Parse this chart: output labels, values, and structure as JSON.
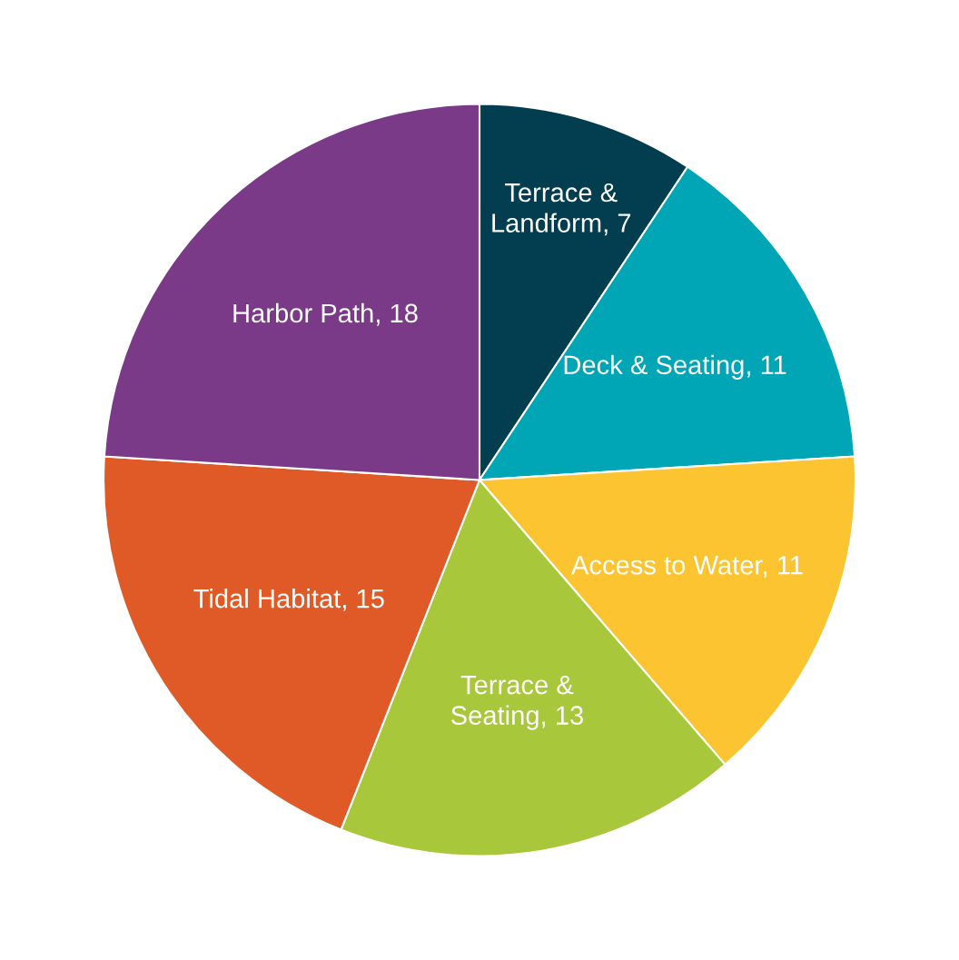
{
  "chart_data": {
    "type": "pie",
    "categories": [
      "Terrace &\nLandform, 7",
      "Deck & Seating, 11",
      "Access to Water, 11",
      "Terrace &\nSeating, 13",
      "Tidal Habitat, 15",
      "Harbor Path, 18"
    ],
    "values": [
      7,
      11,
      11,
      13,
      15,
      18
    ],
    "colors": [
      "#023d50",
      "#00a6b5",
      "#fdc431",
      "#a8c73a",
      "#e05a27",
      "#7a3a87"
    ]
  }
}
